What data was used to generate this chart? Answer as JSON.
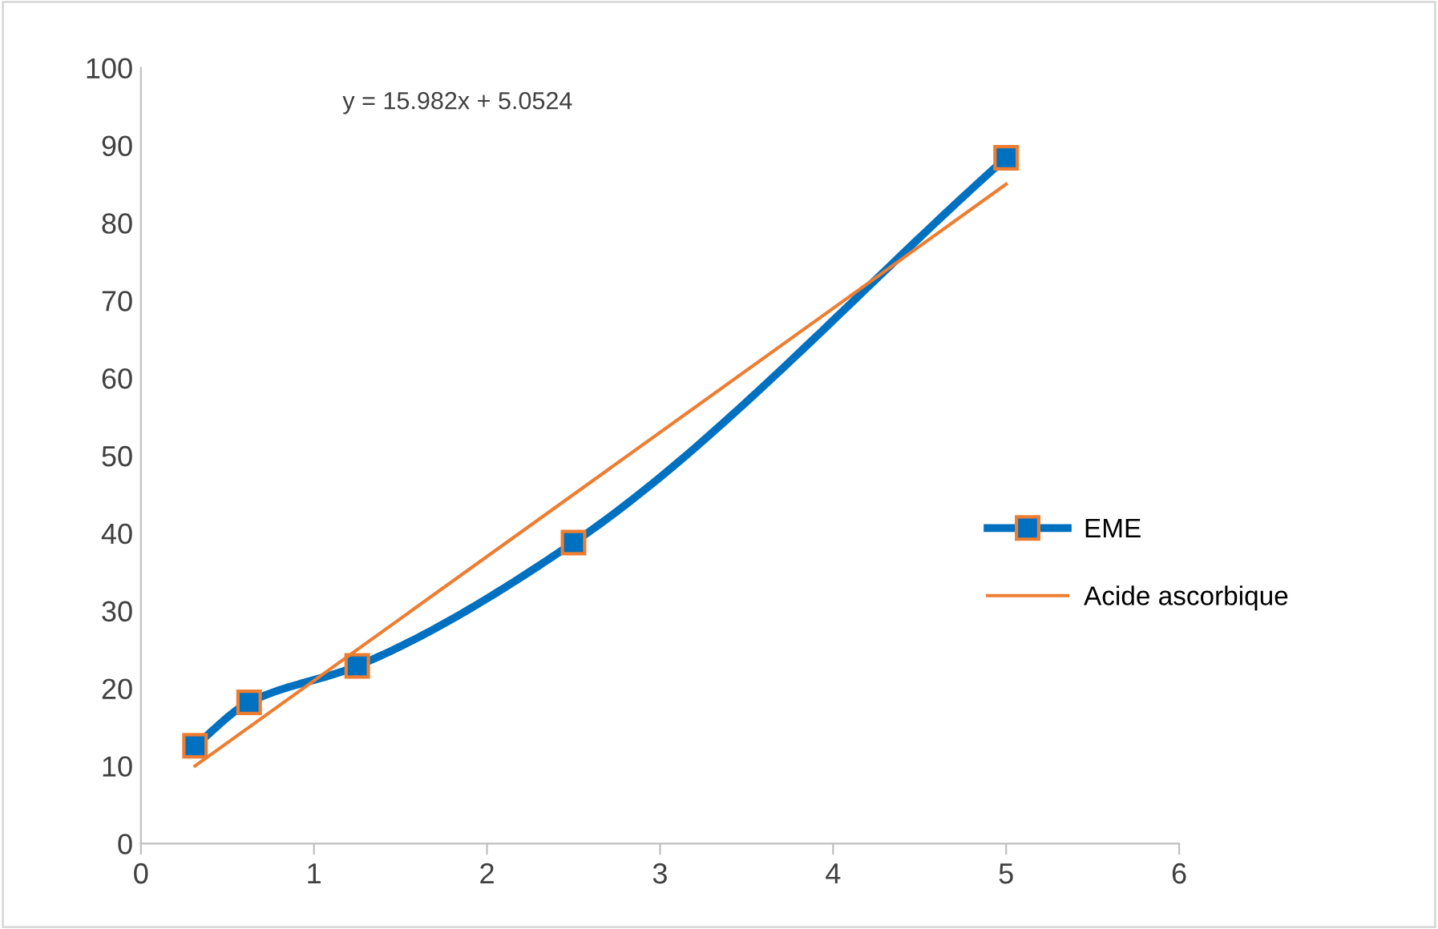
{
  "chart_data": {
    "type": "line",
    "x": [
      0.3125,
      0.625,
      1.25,
      2.5,
      5
    ],
    "series": [
      {
        "name": "EME",
        "color": "#0070c0",
        "values": [
          12.6,
          18.2,
          22.9,
          38.8,
          88.4
        ]
      },
      {
        "name": "Acide ascorbique",
        "color": "#ed7d31",
        "type": "line",
        "x": [
          0.3125,
          5
        ],
        "values": [
          10,
          85
        ],
        "marker": "none"
      }
    ],
    "xlim": [
      0,
      6
    ],
    "xticks": [
      0,
      1,
      2,
      3,
      4,
      5,
      6
    ],
    "ylim": [
      0,
      100
    ],
    "yticks": [
      0,
      10,
      20,
      30,
      40,
      50,
      60,
      70,
      80,
      90,
      100
    ],
    "marker": "square",
    "grid": false,
    "legend": "right",
    "annotations": [
      "y = 15.982x + 5.0524"
    ]
  }
}
